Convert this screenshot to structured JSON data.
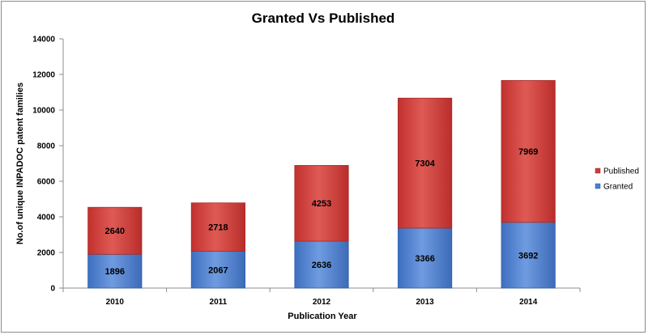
{
  "chart_data": {
    "type": "bar",
    "stacked": true,
    "title": "Granted Vs Published",
    "xlabel": "Publication Year",
    "ylabel": "No.of unique INPADOC patent families",
    "categories": [
      "2010",
      "2011",
      "2012",
      "2013",
      "2014"
    ],
    "ylim": [
      0,
      14000
    ],
    "yticks": [
      "0",
      "2000",
      "4000",
      "6000",
      "8000",
      "10000",
      "12000",
      "14000"
    ],
    "grid": false,
    "legend_position": "right",
    "series": [
      {
        "name": "Granted",
        "color": "#4a7fcf",
        "values": [
          1896,
          2067,
          2636,
          3366,
          3692
        ]
      },
      {
        "name": "Published",
        "color": "#cc3a36",
        "values": [
          2640,
          2718,
          4253,
          7304,
          7969
        ]
      }
    ]
  }
}
